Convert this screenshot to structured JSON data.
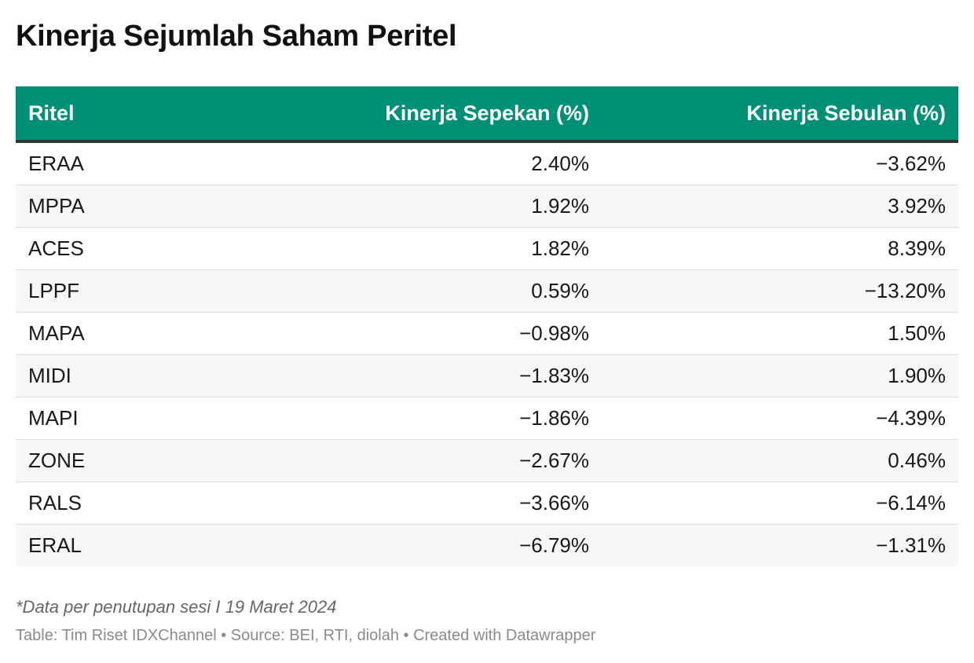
{
  "colors": {
    "header_bg": "#009076",
    "header_text": "#ffffff",
    "header_rule": "#333333",
    "row_alt_bg": "#f7f7f7"
  },
  "chart_data": {
    "type": "table",
    "title": "Kinerja Sejumlah Saham Peritel",
    "columns": [
      "Ritel",
      "Kinerja Sepekan (%)",
      "Kinerja Sebulan (%)"
    ],
    "rows": [
      [
        "ERAA",
        "2.40%",
        "−3.62%"
      ],
      [
        "MPPA",
        "1.92%",
        "3.92%"
      ],
      [
        "ACES",
        "1.82%",
        "8.39%"
      ],
      [
        "LPPF",
        "0.59%",
        "−13.20%"
      ],
      [
        "MAPA",
        "−0.98%",
        "1.50%"
      ],
      [
        "MIDI",
        "−1.83%",
        "1.90%"
      ],
      [
        "MAPI",
        "−1.86%",
        "−4.39%"
      ],
      [
        "ZONE",
        "−2.67%",
        "0.46%"
      ],
      [
        "RALS",
        "−3.66%",
        "−6.14%"
      ],
      [
        "ERAL",
        "−6.79%",
        "−1.31%"
      ]
    ],
    "values": {
      "Kinerja Sepekan (%)": [
        2.4,
        1.92,
        1.82,
        0.59,
        -0.98,
        -1.83,
        -1.86,
        -2.67,
        -3.66,
        -6.79
      ],
      "Kinerja Sebulan (%)": [
        -3.62,
        3.92,
        8.39,
        -13.2,
        1.5,
        1.9,
        -4.39,
        0.46,
        -6.14,
        -1.31
      ]
    }
  },
  "footer": {
    "note": "*Data per penutupan sesi I 19 Maret 2024",
    "credit": "Table: Tim Riset IDXChannel • Source: BEI, RTI, diolah • Created with Datawrapper"
  }
}
